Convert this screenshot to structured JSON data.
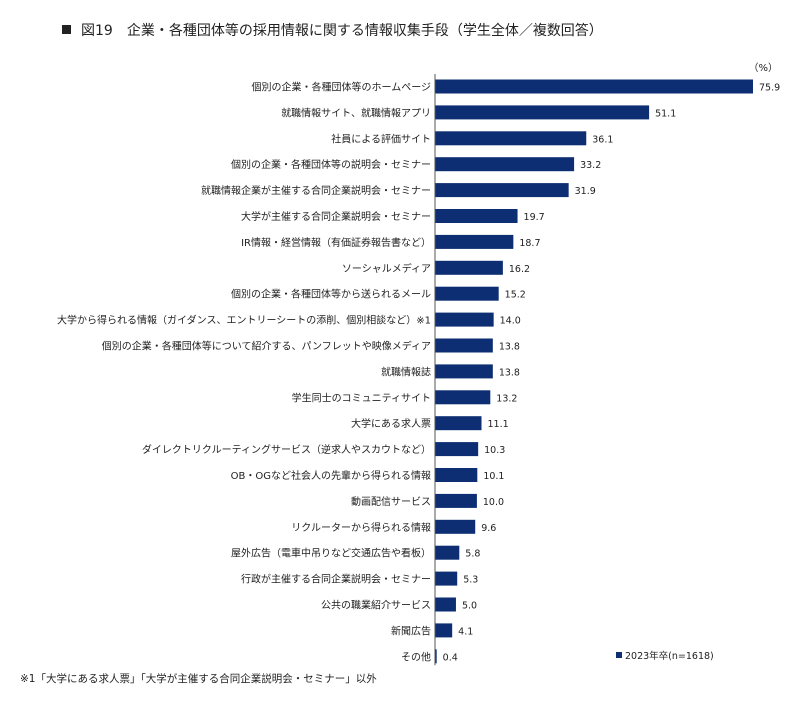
{
  "title": "図19　企業・各種団体等の採用情報に関する情報収集手段（学生全体／複数回答）",
  "unit_label": "（%）",
  "footnote": "※1「大学にある求人票」「大学が主催する合同企業説明会・セミナー」以外",
  "colors": {
    "bar": "#0d2e73",
    "axis": "#555555"
  },
  "chart_data": {
    "type": "bar",
    "orientation": "horizontal",
    "unit": "%",
    "categories": [
      "個別の企業・各種団体等のホームページ",
      "就職情報サイト、就職情報アプリ",
      "社員による評価サイト",
      "個別の企業・各種団体等の説明会・セミナー",
      "就職情報企業が主催する合同企業説明会・セミナー",
      "大学が主催する合同企業説明会・セミナー",
      "IR情報・経営情報（有価証券報告書など）",
      "ソーシャルメディア",
      "個別の企業・各種団体等から送られるメール",
      "大学から得られる情報（ガイダンス、エントリーシートの添削、個別相談など）※1",
      "個別の企業・各種団体等について紹介する、パンフレットや映像メディア",
      "就職情報誌",
      "学生同士のコミュニティサイト",
      "大学にある求人票",
      "ダイレクトリクルーティングサービス（逆求人やスカウトなど）",
      "OB・OGなど社会人の先輩から得られる情報",
      "動画配信サービス",
      "リクルーターから得られる情報",
      "屋外広告（電車中吊りなど交通広告や看板）",
      "行政が主催する合同企業説明会・セミナー",
      "公共の職業紹介サービス",
      "新聞広告",
      "その他"
    ],
    "series": [
      {
        "name": "2023年卒(n=1618)",
        "values": [
          75.9,
          51.1,
          36.1,
          33.2,
          31.9,
          19.7,
          18.7,
          16.2,
          15.2,
          14.0,
          13.8,
          13.8,
          13.2,
          11.1,
          10.3,
          10.1,
          10.0,
          9.6,
          5.8,
          5.3,
          5.0,
          4.1,
          0.4
        ],
        "value_labels": [
          "75.9",
          "51.1",
          "36.1",
          "33.2",
          "31.9",
          "19.7",
          "18.7",
          "16.2",
          "15.2",
          "14.0",
          "13.8",
          "13.8",
          "13.2",
          "11.1",
          "10.3",
          "10.1",
          "10.0",
          "9.6",
          "5.8",
          "5.3",
          "5.0",
          "4.1",
          "0.4"
        ]
      }
    ],
    "xlim": [
      0,
      80
    ],
    "grid": false,
    "legend": "bottom-right"
  }
}
